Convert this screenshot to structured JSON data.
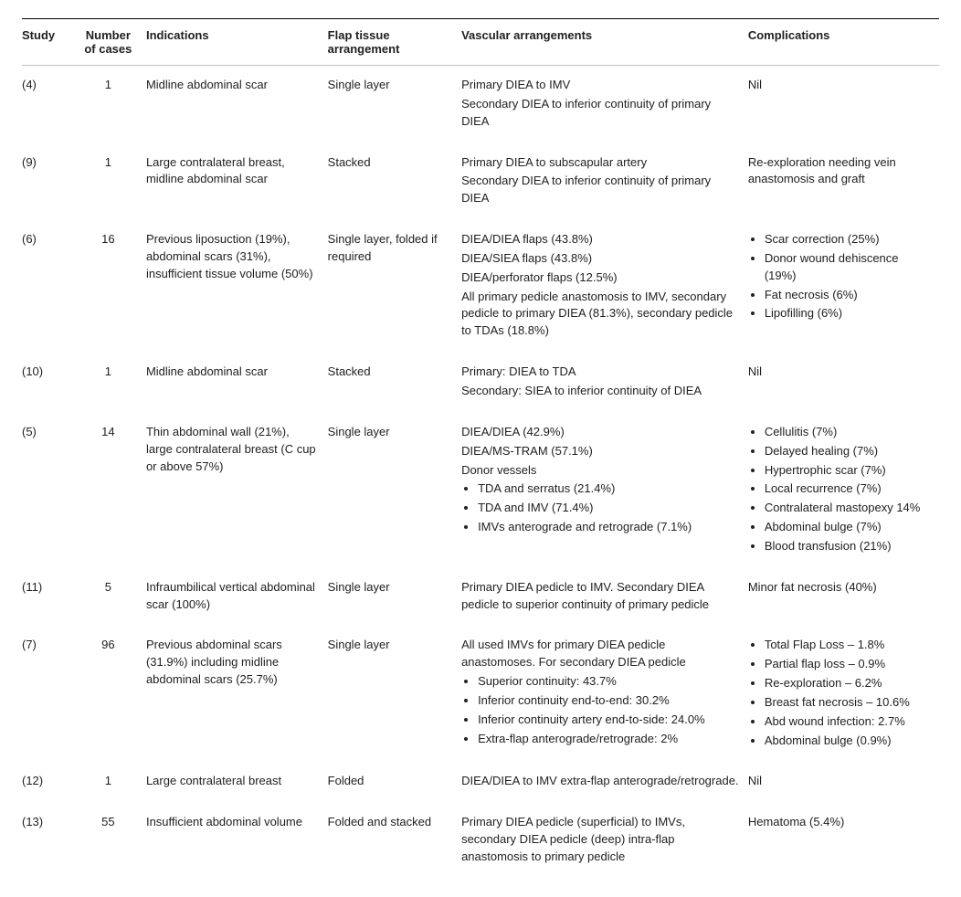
{
  "headers": {
    "study": "Study",
    "n": "Number of cases",
    "indications": "Indications",
    "flap": "Flap tissue arrangement",
    "vascular": "Vascular arrangements",
    "complications": "Complications"
  },
  "rows": [
    {
      "study": "(4)",
      "n": "1",
      "indications": [
        "Midline abdominal scar"
      ],
      "flap": "Single layer",
      "vascular": [
        "Primary DIEA to IMV",
        "Secondary DIEA to inferior continuity of primary DIEA"
      ],
      "complications": [
        "Nil"
      ]
    },
    {
      "study": "(9)",
      "n": "1",
      "indications": [
        "Large contralateral breast, midline abdominal scar"
      ],
      "flap": "Stacked",
      "vascular": [
        "Primary DIEA to subscapular artery",
        "Secondary DIEA to inferior continuity of primary DIEA"
      ],
      "complications": [
        "Re-exploration needing vein anastomosis and graft"
      ]
    },
    {
      "study": "(6)",
      "n": "16",
      "indications": [
        "Previous liposuction (19%), abdominal scars (31%), insufficient tissue volume (50%)"
      ],
      "flap": "Single layer, folded if required",
      "vascular": [
        "DIEA/DIEA flaps (43.8%)",
        "DIEA/SIEA flaps (43.8%)",
        "DIEA/perforator flaps (12.5%)",
        "All primary pedicle anastomosis to IMV, secondary pedicle to primary DIEA (81.3%), secondary pedicle to TDAs (18.8%)"
      ],
      "complications_bulleted": [
        "Scar correction (25%)",
        "Donor wound dehiscence (19%)",
        "Fat necrosis (6%)",
        "Lipofilling (6%)"
      ]
    },
    {
      "study": "(10)",
      "n": "1",
      "indications": [
        "Midline abdominal scar"
      ],
      "flap": "Stacked",
      "vascular": [
        "Primary: DIEA to TDA",
        "Secondary: SIEA to inferior continuity of DIEA"
      ],
      "complications": [
        "Nil"
      ]
    },
    {
      "study": "(5)",
      "n": "14",
      "indications": [
        "Thin abdominal wall (21%), large contralateral breast (C cup or above 57%)"
      ],
      "flap": "Single layer",
      "vascular_prelines": [
        "DIEA/DIEA (42.9%)",
        "DIEA/MS-TRAM (57.1%)",
        "Donor vessels"
      ],
      "vascular_bulleted": [
        "TDA and serratus (21.4%)",
        "TDA and IMV (71.4%)",
        "IMVs anterograde and retrograde (7.1%)"
      ],
      "complications_bulleted": [
        "Cellulitis (7%)",
        "Delayed healing (7%)",
        "Hypertrophic scar (7%)",
        "Local recurrence (7%)",
        "Contralateral mastopexy 14%",
        "Abdominal bulge (7%)",
        "Blood transfusion (21%)"
      ]
    },
    {
      "study": "(11)",
      "n": "5",
      "indications": [
        "Infraumbilical vertical abdominal scar (100%)"
      ],
      "flap": "Single layer",
      "vascular": [
        "Primary DIEA pedicle to IMV. Secondary DIEA pedicle to superior continuity of primary pedicle"
      ],
      "complications": [
        "Minor fat necrosis (40%)"
      ]
    },
    {
      "study": "(7)",
      "n": "96",
      "indications": [
        "Previous abdominal scars (31.9%) including midline abdominal scars (25.7%)"
      ],
      "flap": "Single layer",
      "vascular_prelines": [
        "All used IMVs for primary DIEA pedicle anastomoses. For secondary DIEA pedicle"
      ],
      "vascular_bulleted": [
        "Superior continuity: 43.7%",
        "Inferior continuity end-to-end: 30.2%",
        "Inferior continuity artery end-to-side: 24.0%",
        "Extra-flap anterograde/retrograde: 2%"
      ],
      "complications_bulleted": [
        "Total Flap Loss – 1.8%",
        "Partial flap loss – 0.9%",
        "Re-exploration – 6.2%",
        "Breast fat necrosis – 10.6%",
        "Abd wound infection: 2.7%",
        "Abdominal bulge (0.9%)"
      ]
    },
    {
      "study": "(12)",
      "n": "1",
      "indications": [
        "Large contralateral breast"
      ],
      "flap": "Folded",
      "vascular": [
        "DIEA/DIEA to IMV extra-flap anterograde/retrograde."
      ],
      "complications": [
        "Nil"
      ]
    },
    {
      "study": "(13)",
      "n": "55",
      "indications": [
        "Insufficient abdominal volume"
      ],
      "flap": "Folded and stacked",
      "vascular": [
        "Primary DIEA pedicle (superficial) to IMVs, secondary DIEA pedicle (deep) intra-flap anastomosis to primary pedicle"
      ],
      "complications": [
        "Hematoma (5.4%)"
      ]
    }
  ]
}
